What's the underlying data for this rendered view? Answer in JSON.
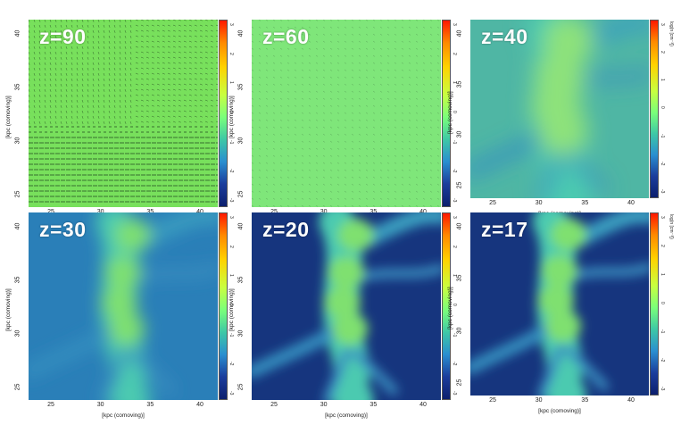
{
  "colors": {
    "map_low": "#0e2a70",
    "map_mid": "#3aa0b8",
    "map_high": "#8cf06a",
    "green_field": "#7fe86a"
  },
  "axes": {
    "xlabel": "[kpc (comoving)]",
    "ylabel": "[kpc (comoving)]",
    "x_ticks": [
      "25",
      "30",
      "35",
      "40"
    ],
    "y_ticks": [
      "25",
      "30",
      "35",
      "40"
    ]
  },
  "colorbar": {
    "unit": "log(n [cm⁻³])",
    "ticks_top_row": [
      "3",
      "2",
      "1",
      "0",
      "-1",
      "-2",
      "-3"
    ],
    "ticks_bottom_row": [
      "3",
      "2",
      "1",
      "0",
      "-1",
      "-2",
      "-3"
    ]
  },
  "panels": [
    {
      "z_label": "z=90"
    },
    {
      "z_label": "z=60"
    },
    {
      "z_label": "z=40"
    },
    {
      "z_label": "z=30"
    },
    {
      "z_label": "z=20"
    },
    {
      "z_label": "z=17"
    }
  ]
}
